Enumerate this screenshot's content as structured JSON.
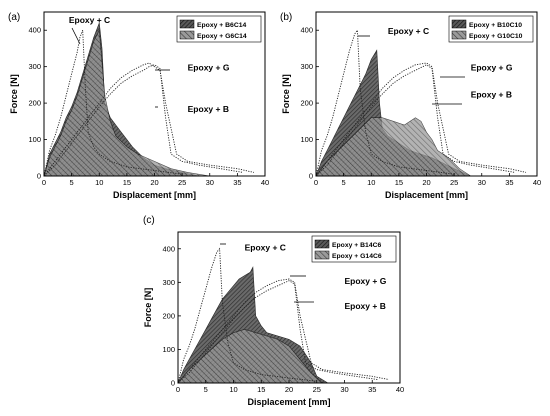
{
  "chart_data": [
    {
      "panel_label": "(a)",
      "type": "area",
      "xlabel": "Displacement [mm]",
      "ylabel": "Force [N]",
      "xlim": [
        0,
        40
      ],
      "ylim": [
        0,
        450
      ],
      "xticks": [
        "0",
        "5",
        "10",
        "15",
        "20",
        "25",
        "30",
        "35",
        "40"
      ],
      "yticks": [
        "0",
        "100",
        "200",
        "300",
        "400"
      ],
      "legend_position": "top-right",
      "legend": [
        "Epoxy + B6C14",
        "Epoxy + G6C14"
      ],
      "series": [
        {
          "name": "Epoxy + B6C14",
          "style": "hatched-dark",
          "x": [
            0,
            1,
            2,
            3,
            4,
            5,
            6,
            7,
            8,
            9,
            10,
            10.5,
            11,
            12,
            13,
            14,
            15,
            16,
            18,
            20,
            22,
            25,
            28
          ],
          "y": [
            0,
            60,
            90,
            120,
            160,
            190,
            230,
            280,
            330,
            380,
            420,
            350,
            200,
            160,
            140,
            120,
            100,
            80,
            50,
            30,
            20,
            10,
            0
          ]
        },
        {
          "name": "Epoxy + G6C14",
          "style": "hatched-light",
          "x": [
            0,
            1,
            2,
            3,
            4,
            5,
            6,
            7,
            8,
            9,
            10,
            11,
            12,
            13,
            15,
            17,
            20,
            23,
            26,
            30
          ],
          "y": [
            0,
            50,
            80,
            110,
            150,
            180,
            220,
            270,
            320,
            370,
            400,
            220,
            150,
            110,
            80,
            60,
            40,
            20,
            10,
            0
          ]
        },
        {
          "name": "Epoxy + C",
          "style": "dotted",
          "x": [
            0,
            1,
            2,
            3,
            4,
            5,
            6,
            6.5,
            7,
            7.5,
            8,
            9,
            10,
            12,
            15,
            20,
            25
          ],
          "y": [
            0,
            70,
            110,
            160,
            220,
            280,
            340,
            380,
            400,
            240,
            120,
            80,
            60,
            40,
            25,
            15,
            5
          ]
        },
        {
          "name": "Epoxy + G",
          "style": "dotted",
          "x": [
            0,
            2,
            4,
            6,
            8,
            10,
            12,
            14,
            16,
            18,
            19,
            20,
            21,
            22,
            24,
            26,
            30,
            35,
            38
          ],
          "y": [
            0,
            40,
            80,
            120,
            160,
            200,
            240,
            270,
            290,
            305,
            310,
            300,
            290,
            200,
            60,
            40,
            30,
            20,
            10
          ]
        },
        {
          "name": "Epoxy + B",
          "style": "dotted",
          "x": [
            0,
            2,
            4,
            6,
            8,
            10,
            12,
            14,
            16,
            18,
            19,
            20,
            21,
            22,
            23,
            25,
            28,
            32,
            36
          ],
          "y": [
            0,
            30,
            70,
            110,
            150,
            190,
            225,
            255,
            275,
            290,
            300,
            305,
            295,
            160,
            60,
            40,
            30,
            20,
            10
          ]
        }
      ],
      "annotations": [
        {
          "text": "Epoxy + C",
          "x": 4.5,
          "y": 420
        },
        {
          "text": "Epoxy + G",
          "x": 26,
          "y": 290
        },
        {
          "text": "Epoxy + B",
          "x": 26,
          "y": 175
        }
      ]
    },
    {
      "panel_label": "(b)",
      "type": "area",
      "xlabel": "Displacement [mm]",
      "ylabel": "Force [N]",
      "xlim": [
        0,
        40
      ],
      "ylim": [
        0,
        450
      ],
      "xticks": [
        "0",
        "5",
        "10",
        "15",
        "20",
        "25",
        "30",
        "35",
        "40"
      ],
      "yticks": [
        "0",
        "100",
        "200",
        "300",
        "400"
      ],
      "legend_position": "top-right",
      "legend": [
        "Epoxy + B10C10",
        "Epoxy + G10C10"
      ],
      "series": [
        {
          "name": "Epoxy + B10C10",
          "style": "hatched-dark",
          "x": [
            0,
            1,
            2,
            3,
            4,
            5,
            6,
            7,
            8,
            9,
            10,
            11,
            11.5,
            12,
            13,
            15,
            17,
            19,
            21,
            23,
            25,
            28
          ],
          "y": [
            0,
            40,
            70,
            100,
            130,
            160,
            190,
            220,
            250,
            280,
            320,
            345,
            200,
            130,
            110,
            90,
            70,
            60,
            50,
            35,
            20,
            0
          ]
        },
        {
          "name": "Epoxy + G10C10",
          "style": "hatched-light",
          "x": [
            0,
            2,
            4,
            6,
            8,
            10,
            12,
            14,
            16,
            18,
            19,
            20,
            21,
            22,
            24,
            26,
            28
          ],
          "y": [
            0,
            40,
            70,
            100,
            130,
            160,
            160,
            150,
            140,
            160,
            150,
            120,
            100,
            70,
            50,
            20,
            0
          ]
        },
        {
          "name": "Epoxy + C",
          "style": "dotted",
          "x": [
            0,
            1,
            2,
            3,
            4,
            5,
            6,
            7,
            7.5,
            8,
            9,
            10,
            12,
            15,
            20,
            25
          ],
          "y": [
            0,
            70,
            110,
            160,
            220,
            280,
            340,
            390,
            400,
            240,
            120,
            60,
            40,
            25,
            15,
            5
          ]
        },
        {
          "name": "Epoxy + G",
          "style": "dotted",
          "x": [
            0,
            2,
            4,
            6,
            8,
            10,
            12,
            14,
            16,
            18,
            20,
            21,
            22,
            24,
            26,
            30,
            35,
            38
          ],
          "y": [
            0,
            40,
            80,
            120,
            160,
            200,
            240,
            270,
            290,
            305,
            310,
            300,
            200,
            60,
            40,
            30,
            20,
            10
          ]
        },
        {
          "name": "Epoxy + B",
          "style": "dotted",
          "x": [
            0,
            2,
            4,
            6,
            8,
            10,
            12,
            14,
            16,
            18,
            20,
            21,
            22,
            23,
            25,
            28,
            32,
            36
          ],
          "y": [
            0,
            30,
            70,
            110,
            150,
            190,
            225,
            255,
            275,
            290,
            305,
            295,
            160,
            60,
            40,
            30,
            20,
            10
          ]
        }
      ],
      "annotations": [
        {
          "text": "Epoxy + C",
          "x": 13,
          "y": 390
        },
        {
          "text": "Epoxy + G",
          "x": 28,
          "y": 290
        },
        {
          "text": "Epoxy + B",
          "x": 28,
          "y": 215
        }
      ]
    },
    {
      "panel_label": "(c)",
      "type": "area",
      "xlabel": "Displacement [mm]",
      "ylabel": "Force [N]",
      "xlim": [
        0,
        40
      ],
      "ylim": [
        0,
        450
      ],
      "xticks": [
        "0",
        "5",
        "10",
        "15",
        "20",
        "25",
        "30",
        "35",
        "40"
      ],
      "yticks": [
        "0",
        "100",
        "200",
        "300",
        "400"
      ],
      "legend_position": "top-right",
      "legend": [
        "Epoxy + B14C6",
        "Epoxy + G14C6"
      ],
      "series": [
        {
          "name": "Epoxy + B14C6",
          "style": "hatched-dark",
          "x": [
            0,
            1,
            2,
            3,
            4,
            5,
            6,
            7,
            8,
            9,
            10,
            11,
            12,
            13,
            13.5,
            14,
            15,
            16,
            18,
            20,
            22,
            24,
            25,
            27
          ],
          "y": [
            0,
            40,
            70,
            100,
            130,
            160,
            190,
            220,
            250,
            270,
            290,
            310,
            320,
            330,
            345,
            200,
            170,
            150,
            140,
            130,
            110,
            60,
            20,
            0
          ]
        },
        {
          "name": "Epoxy + G14C6",
          "style": "hatched-light",
          "x": [
            0,
            2,
            4,
            6,
            8,
            10,
            12,
            14,
            16,
            18,
            20,
            22,
            24,
            26
          ],
          "y": [
            0,
            40,
            70,
            100,
            130,
            150,
            160,
            150,
            140,
            130,
            110,
            70,
            30,
            0
          ]
        },
        {
          "name": "Epoxy + C",
          "style": "dotted",
          "x": [
            0,
            1,
            2,
            3,
            4,
            5,
            6,
            7,
            7.5,
            8,
            9,
            10,
            12,
            15,
            20,
            25
          ],
          "y": [
            0,
            70,
            110,
            160,
            220,
            280,
            340,
            390,
            400,
            240,
            120,
            60,
            40,
            25,
            15,
            5
          ]
        },
        {
          "name": "Epoxy + G",
          "style": "dotted",
          "x": [
            0,
            2,
            4,
            6,
            8,
            10,
            12,
            14,
            16,
            18,
            20,
            21,
            22,
            24,
            26,
            30,
            35,
            38
          ],
          "y": [
            0,
            40,
            80,
            120,
            160,
            200,
            240,
            270,
            290,
            305,
            310,
            300,
            200,
            60,
            40,
            30,
            20,
            10
          ]
        },
        {
          "name": "Epoxy + B",
          "style": "dotted",
          "x": [
            0,
            2,
            4,
            6,
            8,
            10,
            12,
            14,
            16,
            18,
            20,
            21,
            22,
            23,
            25,
            28,
            32,
            36
          ],
          "y": [
            0,
            30,
            70,
            110,
            150,
            190,
            225,
            255,
            275,
            290,
            305,
            295,
            160,
            60,
            40,
            30,
            20,
            10
          ]
        }
      ],
      "annotations": [
        {
          "text": "Epoxy + C",
          "x": 12,
          "y": 395
        },
        {
          "text": "Epoxy + G",
          "x": 30,
          "y": 295
        },
        {
          "text": "Epoxy + B",
          "x": 30,
          "y": 220
        }
      ]
    }
  ]
}
